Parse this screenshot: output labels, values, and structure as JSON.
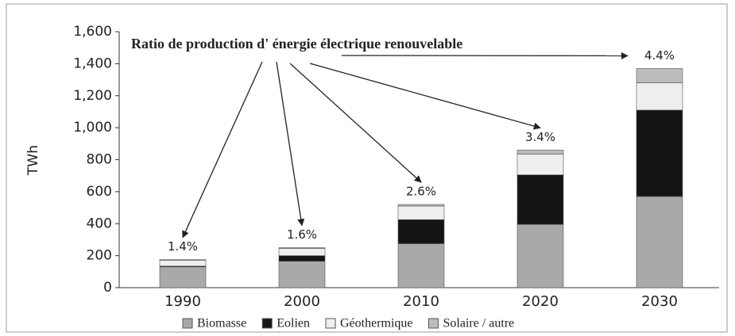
{
  "chart_data": {
    "type": "stacked_bar",
    "annotation": "Ratio de production d' énergie électrique renouvelable",
    "ratio_labels": [
      "1.4%",
      "1.6%",
      "2.6%",
      "3.4%",
      "4.4%"
    ],
    "y_label": "TWh",
    "categories": [
      "1990",
      "2000",
      "2010",
      "2020",
      "2030"
    ],
    "series": [
      {
        "name": "Biomasse",
        "color": "#a9a9a9",
        "values": [
          130,
          165,
          275,
          395,
          570
        ]
      },
      {
        "name": "Eolien",
        "color": "#141414",
        "values": [
          5,
          35,
          150,
          310,
          540
        ]
      },
      {
        "name": "Géothermique",
        "color": "#efefef",
        "values": [
          35,
          45,
          85,
          130,
          170
        ]
      },
      {
        "name": "Solaire / autre",
        "color": "#bcbcbc",
        "values": [
          5,
          5,
          10,
          25,
          90
        ]
      }
    ],
    "ylim": [
      0,
      1600
    ],
    "yticks": [
      0,
      200,
      400,
      600,
      800,
      {
        "value": 1000,
        "label": "1,000"
      },
      {
        "value": 1200,
        "label": "1,200"
      },
      {
        "value": 1400,
        "label": "1,400"
      },
      {
        "value": 1600,
        "label": "1,600"
      }
    ],
    "legend": "bottom"
  }
}
